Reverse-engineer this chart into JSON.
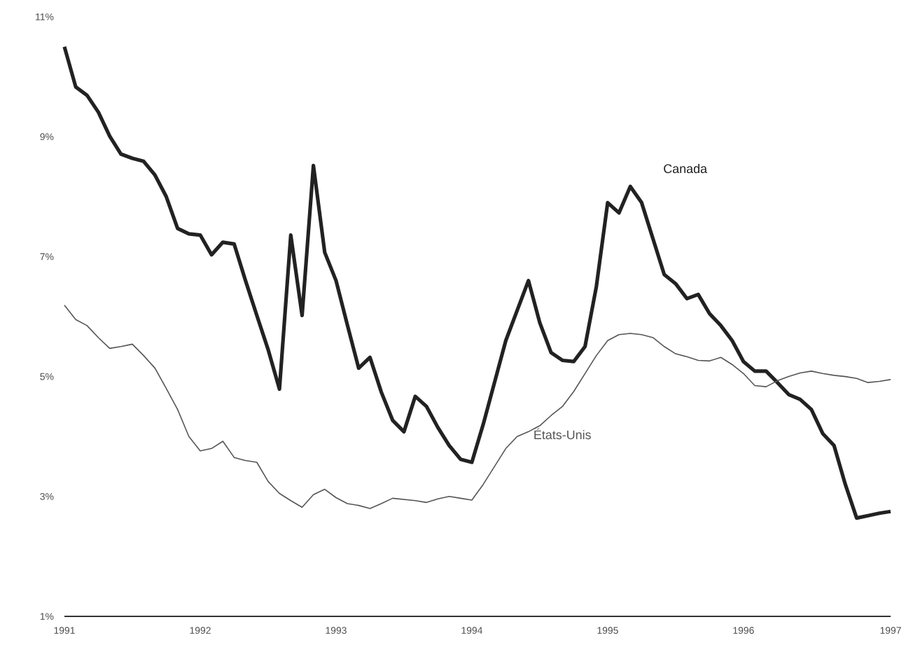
{
  "chart_data": {
    "type": "line",
    "categories": [
      "1991",
      null,
      null,
      null,
      null,
      null,
      null,
      null,
      null,
      null,
      null,
      null,
      "1992",
      null,
      null,
      null,
      null,
      null,
      null,
      null,
      null,
      null,
      null,
      null,
      "1993",
      null,
      null,
      null,
      null,
      null,
      null,
      null,
      null,
      null,
      null,
      null,
      "1994",
      null,
      null,
      null,
      null,
      null,
      null,
      null,
      null,
      null,
      null,
      null,
      "1995",
      null,
      null,
      null,
      null,
      null,
      null,
      null,
      null,
      null,
      null,
      null,
      "1996",
      null,
      null,
      null,
      null,
      null,
      null,
      null,
      null,
      null,
      null,
      null,
      null,
      "1997"
    ],
    "series": [
      {
        "name": "Canada",
        "color": "#222222",
        "values": [
          10.5,
          9.83,
          9.69,
          9.41,
          9.01,
          8.71,
          8.64,
          8.59,
          8.36,
          8.0,
          7.47,
          7.38,
          7.36,
          7.03,
          7.24,
          7.21,
          6.6,
          6.02,
          5.45,
          4.79,
          7.36,
          6.02,
          8.52,
          7.07,
          6.6,
          5.86,
          5.14,
          5.32,
          4.74,
          4.27,
          4.08,
          4.67,
          4.5,
          4.15,
          3.85,
          3.62,
          3.57,
          4.2,
          4.9,
          5.6,
          6.1,
          6.6,
          5.9,
          5.4,
          5.27,
          5.25,
          5.5,
          6.5,
          7.9,
          7.73,
          8.17,
          7.9,
          7.3,
          6.7,
          6.55,
          6.3,
          6.37,
          6.05,
          5.85,
          5.6,
          5.25,
          5.09,
          5.09,
          4.9,
          4.7,
          4.62,
          4.45,
          4.05,
          3.85,
          3.2,
          2.64,
          2.68,
          2.72,
          2.75
        ]
      },
      {
        "name": "États-Unis",
        "color": "#555555",
        "values": [
          6.19,
          5.95,
          5.85,
          5.65,
          5.47,
          5.5,
          5.54,
          5.35,
          5.14,
          4.8,
          4.45,
          4.0,
          3.76,
          3.8,
          3.92,
          3.65,
          3.6,
          3.57,
          3.25,
          3.05,
          2.93,
          2.82,
          3.03,
          3.12,
          2.98,
          2.88,
          2.85,
          2.8,
          2.88,
          2.97,
          2.95,
          2.93,
          2.9,
          2.96,
          3.0,
          2.97,
          2.94,
          3.2,
          3.5,
          3.8,
          4.0,
          4.08,
          4.18,
          4.35,
          4.5,
          4.75,
          5.05,
          5.35,
          5.6,
          5.7,
          5.72,
          5.7,
          5.65,
          5.5,
          5.38,
          5.33,
          5.27,
          5.26,
          5.32,
          5.2,
          5.05,
          4.85,
          4.83,
          4.93,
          5.0,
          5.06,
          5.09,
          5.05,
          5.02,
          5.0,
          4.97,
          4.9,
          4.92,
          4.95
        ]
      }
    ],
    "ylim": [
      1,
      11
    ],
    "yticks": [
      {
        "value": 1,
        "label": "1%"
      },
      {
        "value": 3,
        "label": "3%"
      },
      {
        "value": 5,
        "label": "5%"
      },
      {
        "value": 7,
        "label": "7%"
      },
      {
        "value": 9,
        "label": "9%"
      },
      {
        "value": 11,
        "label": "11%"
      }
    ],
    "grid": false,
    "legend": false
  }
}
